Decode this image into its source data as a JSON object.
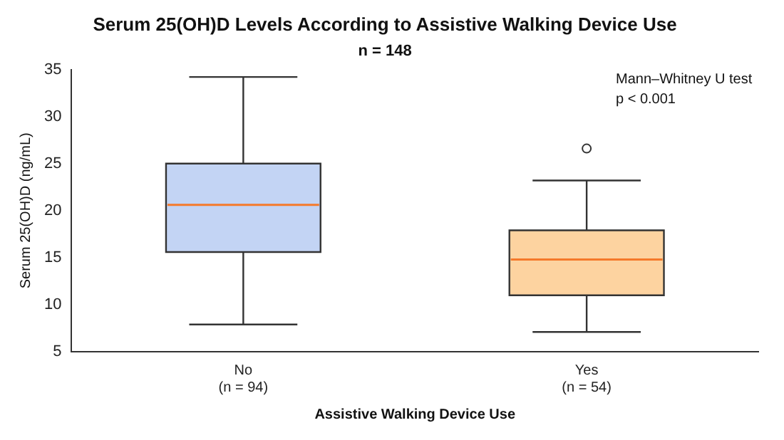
{
  "chart_data": {
    "type": "box",
    "title": "Serum 25(OH)D Levels According to Assistive Walking Device Use",
    "subtitle": "n = 148",
    "xlabel": "Assistive Walking Device Use",
    "ylabel": "Serum 25(OH)D (ng/mL)",
    "categories": [
      "No\n(n = 94)",
      "Yes\n(n = 54)"
    ],
    "boxes": [
      {
        "low": 7.9,
        "q1": 15.6,
        "median": 20.6,
        "q3": 25,
        "high": 34.2
      },
      {
        "low": 7.1,
        "q1": 11,
        "median": 14.8,
        "q3": 17.9,
        "high": 23.2,
        "outliers": [
          26.6
        ]
      }
    ],
    "colors": [
      "#c3d4f4",
      "#fdd3a0"
    ],
    "ylim": [
      5,
      35
    ],
    "yticks": [
      5,
      10,
      15,
      20,
      25,
      30,
      35
    ],
    "grid": false,
    "legend": false,
    "annotations": [
      "Mann–Whitney U test",
      "p < 0.001"
    ]
  }
}
